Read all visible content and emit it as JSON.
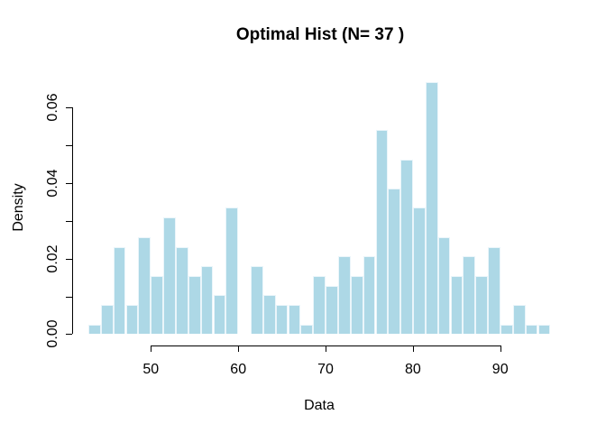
{
  "chart_data": {
    "type": "bar",
    "variant": "histogram",
    "title": "Optimal Hist (N= 37 )",
    "xlabel": "Data",
    "ylabel": "Density",
    "n_bins": 37,
    "bins": {
      "start": 42.84,
      "width": 1.43
    },
    "counts": [
      1,
      3,
      9,
      3,
      10,
      6,
      12,
      9,
      6,
      7,
      4,
      13,
      0,
      7,
      4,
      3,
      3,
      1,
      6,
      5,
      8,
      6,
      8,
      21,
      15,
      18,
      13,
      26,
      10,
      6,
      8,
      6,
      9,
      1,
      3,
      1,
      1
    ],
    "densities": [
      0.00257,
      0.00771,
      0.02314,
      0.00771,
      0.02571,
      0.01543,
      0.03085,
      0.02314,
      0.01543,
      0.018,
      0.01028,
      0.03342,
      0,
      0.018,
      0.01028,
      0.00771,
      0.00771,
      0.00257,
      0.01543,
      0.01285,
      0.02057,
      0.01543,
      0.02057,
      0.05399,
      0.03856,
      0.04628,
      0.03342,
      0.06684,
      0.02571,
      0.01543,
      0.02057,
      0.01543,
      0.02314,
      0.00257,
      0.00771,
      0.00257,
      0.00257
    ],
    "x_ticks": {
      "values": [
        50,
        60,
        70,
        80,
        90
      ],
      "labels": [
        "50",
        "60",
        "70",
        "80",
        "90"
      ]
    },
    "y_ticks": {
      "values": [
        0,
        0.01,
        0.02,
        0.03,
        0.04,
        0.05,
        0.06
      ],
      "labels": [
        "0.00",
        "",
        "0.02",
        "",
        "0.04",
        "",
        "0.06"
      ]
    },
    "xlim": [
      40.7,
      97.9
    ],
    "ylim": [
      -0.0028,
      0.0703
    ],
    "grid": false,
    "legend": null,
    "bar_fill": "#ADD8E6",
    "bar_border": "#EAF5FA",
    "axis_color": "#000000",
    "text_color": "#000000",
    "background": "#FFFFFF"
  }
}
